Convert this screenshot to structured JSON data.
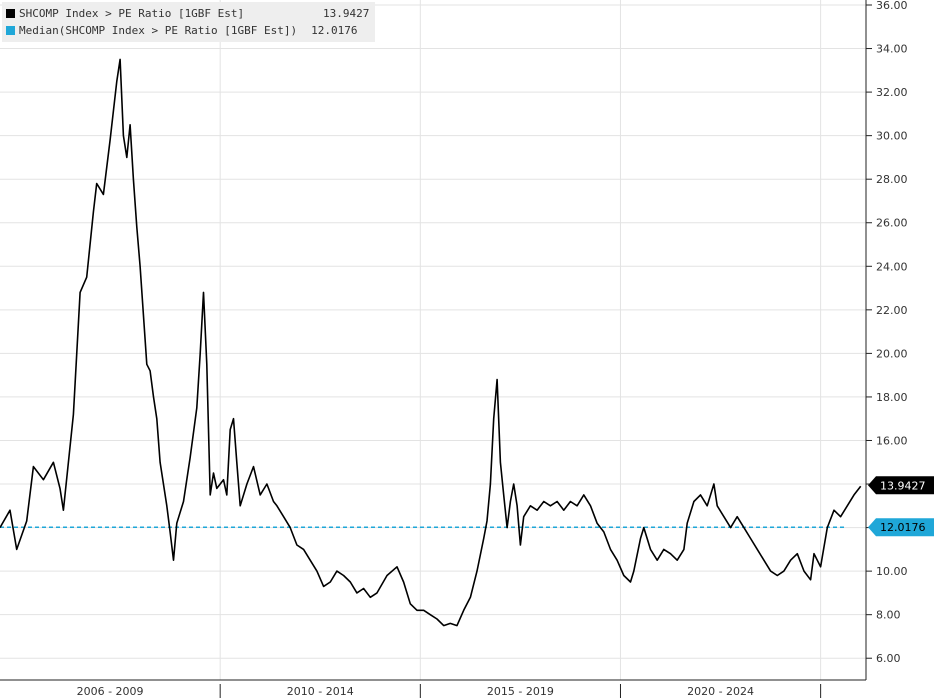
{
  "chart_data": {
    "type": "line",
    "ylim": [
      5,
      36
    ],
    "yticks": [
      "6.00",
      "8.00",
      "10.00",
      "12.00",
      "14.00",
      "16.00",
      "18.00",
      "20.00",
      "22.00",
      "24.00",
      "26.00",
      "28.00",
      "30.00",
      "32.00",
      "34.00",
      "36.00"
    ],
    "x_period_labels": [
      "2006 - 2009",
      "2010 - 2014",
      "2015 - 2019",
      "2020 - 2024"
    ],
    "x_range": [
      "2004-07",
      "2026-02"
    ],
    "grid": true,
    "legend_position": "top-left",
    "series": [
      {
        "name": "SHCOMP Index > PE Ratio [1GBF Est]",
        "last_value": "13.9427",
        "color": "#000000",
        "points": [
          [
            "2004-07",
            12.0
          ],
          [
            "2004-10",
            12.8
          ],
          [
            "2004-12",
            11.0
          ],
          [
            "2005-03",
            12.3
          ],
          [
            "2005-05",
            14.8
          ],
          [
            "2005-08",
            14.2
          ],
          [
            "2005-11",
            15.0
          ],
          [
            "2006-01",
            13.8
          ],
          [
            "2006-02",
            12.8
          ],
          [
            "2006-05",
            17.2
          ],
          [
            "2006-07",
            22.8
          ],
          [
            "2006-09",
            23.5
          ],
          [
            "2006-11",
            26.5
          ],
          [
            "2006-12",
            27.8
          ],
          [
            "2007-02",
            27.3
          ],
          [
            "2007-04",
            29.8
          ],
          [
            "2007-06",
            32.5
          ],
          [
            "2007-07",
            33.5
          ],
          [
            "2007-08",
            30.0
          ],
          [
            "2007-09",
            29.0
          ],
          [
            "2007-10",
            30.5
          ],
          [
            "2007-11",
            28.0
          ],
          [
            "2007-12",
            25.8
          ],
          [
            "2008-01",
            24.0
          ],
          [
            "2008-03",
            19.5
          ],
          [
            "2008-04",
            19.2
          ],
          [
            "2008-05",
            18.0
          ],
          [
            "2008-06",
            17.0
          ],
          [
            "2008-07",
            15.0
          ],
          [
            "2008-09",
            13.0
          ],
          [
            "2008-10",
            11.8
          ],
          [
            "2008-11",
            10.5
          ],
          [
            "2008-12",
            12.2
          ],
          [
            "2009-02",
            13.2
          ],
          [
            "2009-04",
            15.2
          ],
          [
            "2009-06",
            17.5
          ],
          [
            "2009-07",
            20.0
          ],
          [
            "2009-08",
            22.8
          ],
          [
            "2009-09",
            19.5
          ],
          [
            "2009-10",
            13.5
          ],
          [
            "2009-11",
            14.5
          ],
          [
            "2009-12",
            13.8
          ],
          [
            "2010-02",
            14.2
          ],
          [
            "2010-03",
            13.5
          ],
          [
            "2010-04",
            16.5
          ],
          [
            "2010-05",
            17.0
          ],
          [
            "2010-06",
            15.0
          ],
          [
            "2010-07",
            13.0
          ],
          [
            "2010-09",
            14.0
          ],
          [
            "2010-11",
            14.8
          ],
          [
            "2011-01",
            13.5
          ],
          [
            "2011-03",
            14.0
          ],
          [
            "2011-05",
            13.2
          ],
          [
            "2011-06",
            13.0
          ],
          [
            "2011-08",
            12.5
          ],
          [
            "2011-10",
            12.0
          ],
          [
            "2011-12",
            11.2
          ],
          [
            "2012-02",
            11.0
          ],
          [
            "2012-04",
            10.5
          ],
          [
            "2012-06",
            10.0
          ],
          [
            "2012-08",
            9.3
          ],
          [
            "2012-10",
            9.5
          ],
          [
            "2012-12",
            10.0
          ],
          [
            "2013-02",
            9.8
          ],
          [
            "2013-04",
            9.5
          ],
          [
            "2013-06",
            9.0
          ],
          [
            "2013-08",
            9.2
          ],
          [
            "2013-10",
            8.8
          ],
          [
            "2013-12",
            9.0
          ],
          [
            "2014-03",
            9.8
          ],
          [
            "2014-06",
            10.2
          ],
          [
            "2014-08",
            9.5
          ],
          [
            "2014-10",
            8.5
          ],
          [
            "2014-12",
            8.2
          ],
          [
            "2015-02",
            8.2
          ],
          [
            "2015-04",
            8.0
          ],
          [
            "2015-06",
            7.8
          ],
          [
            "2015-08",
            7.5
          ],
          [
            "2015-10",
            7.6
          ],
          [
            "2015-12",
            7.5
          ],
          [
            "2016-02",
            8.2
          ],
          [
            "2016-04",
            8.8
          ],
          [
            "2016-06",
            10.0
          ],
          [
            "2016-08",
            11.5
          ],
          [
            "2016-09",
            12.3
          ],
          [
            "2016-10",
            14.0
          ],
          [
            "2016-11",
            17.0
          ],
          [
            "2016-12",
            18.8
          ],
          [
            "2017-01",
            15.0
          ],
          [
            "2017-02",
            13.5
          ],
          [
            "2017-03",
            12.0
          ],
          [
            "2017-04",
            13.2
          ],
          [
            "2017-05",
            14.0
          ],
          [
            "2017-06",
            13.0
          ],
          [
            "2017-07",
            11.2
          ],
          [
            "2017-08",
            12.5
          ],
          [
            "2017-10",
            13.0
          ],
          [
            "2017-12",
            12.8
          ],
          [
            "2018-02",
            13.2
          ],
          [
            "2018-04",
            13.0
          ],
          [
            "2018-06",
            13.2
          ],
          [
            "2018-08",
            12.8
          ],
          [
            "2018-10",
            13.2
          ],
          [
            "2018-12",
            13.0
          ],
          [
            "2019-02",
            13.5
          ],
          [
            "2019-04",
            13.0
          ],
          [
            "2019-06",
            12.2
          ],
          [
            "2019-08",
            11.8
          ],
          [
            "2019-10",
            11.0
          ],
          [
            "2019-12",
            10.5
          ],
          [
            "2020-02",
            9.8
          ],
          [
            "2020-04",
            9.5
          ],
          [
            "2020-05",
            10.0
          ],
          [
            "2020-07",
            11.5
          ],
          [
            "2020-08",
            12.0
          ],
          [
            "2020-10",
            11.0
          ],
          [
            "2020-12",
            10.5
          ],
          [
            "2021-02",
            11.0
          ],
          [
            "2021-04",
            10.8
          ],
          [
            "2021-06",
            10.5
          ],
          [
            "2021-08",
            11.0
          ],
          [
            "2021-09",
            12.2
          ],
          [
            "2021-11",
            13.2
          ],
          [
            "2022-01",
            13.5
          ],
          [
            "2022-03",
            13.0
          ],
          [
            "2022-05",
            14.0
          ],
          [
            "2022-06",
            13.0
          ],
          [
            "2022-08",
            12.5
          ],
          [
            "2022-10",
            12.0
          ],
          [
            "2022-12",
            12.5
          ],
          [
            "2023-02",
            12.0
          ],
          [
            "2023-04",
            11.5
          ],
          [
            "2023-06",
            11.0
          ],
          [
            "2023-08",
            10.5
          ],
          [
            "2023-10",
            10.0
          ],
          [
            "2023-12",
            9.8
          ],
          [
            "2024-02",
            10.0
          ],
          [
            "2024-04",
            10.5
          ],
          [
            "2024-06",
            10.8
          ],
          [
            "2024-08",
            10.0
          ],
          [
            "2024-10",
            9.6
          ],
          [
            "2024-11",
            10.8
          ],
          [
            "2025-01",
            10.2
          ],
          [
            "2025-03",
            12.0
          ],
          [
            "2025-05",
            12.8
          ],
          [
            "2025-07",
            12.5
          ],
          [
            "2025-09",
            13.0
          ],
          [
            "2025-11",
            13.5
          ],
          [
            "2026-01",
            13.9
          ]
        ]
      },
      {
        "name": "Median(SHCOMP Index > PE Ratio [1GBF Est])",
        "last_value": "12.0176",
        "color": "#1fa7d8",
        "value": 12.0176
      }
    ]
  }
}
